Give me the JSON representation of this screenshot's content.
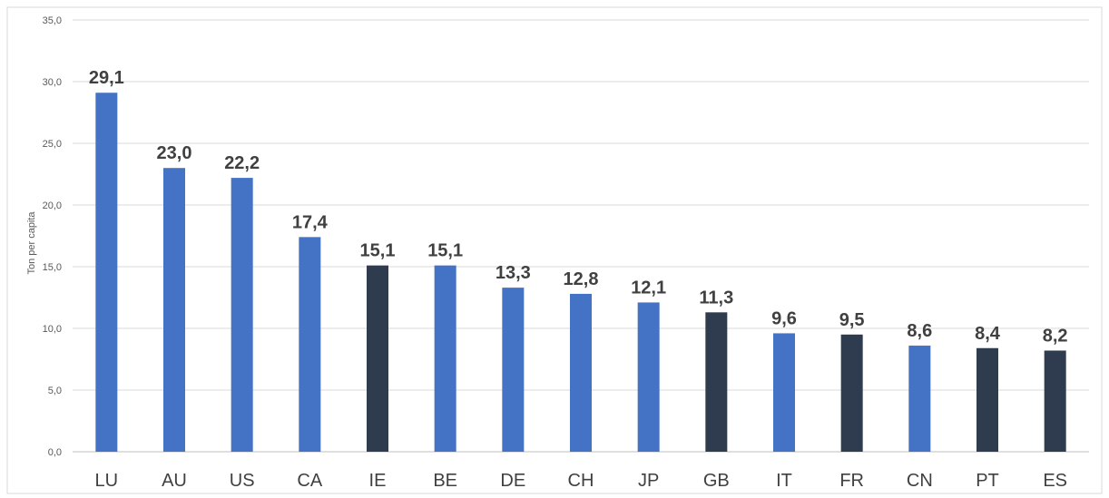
{
  "chart_data": {
    "type": "bar",
    "title": "",
    "xlabel": "",
    "ylabel": "Ton per capita",
    "ylim": [
      0,
      35
    ],
    "ytick_step": 5,
    "ytick_labels": [
      "0,0",
      "5,0",
      "10,0",
      "15,0",
      "20,0",
      "25,0",
      "30,0",
      "35,0"
    ],
    "grid": true,
    "legend": "none",
    "categories": [
      "LU",
      "AU",
      "US",
      "CA",
      "IE",
      "BE",
      "DE",
      "CH",
      "JP",
      "GB",
      "IT",
      "FR",
      "CN",
      "PT",
      "ES"
    ],
    "values": [
      29.1,
      23.0,
      22.2,
      17.4,
      15.1,
      15.1,
      13.3,
      12.8,
      12.1,
      11.3,
      9.6,
      9.5,
      8.6,
      8.4,
      8.2
    ],
    "value_labels": [
      "29,1",
      "23,0",
      "22,2",
      "17,4",
      "15,1",
      "15,1",
      "13,3",
      "12,8",
      "12,1",
      "11,3",
      "9,6",
      "9,5",
      "8,6",
      "8,4",
      "8,2"
    ],
    "bar_colors": [
      "#4472C4",
      "#4472C4",
      "#4472C4",
      "#4472C4",
      "#2F3B4F",
      "#4472C4",
      "#4472C4",
      "#4472C4",
      "#4472C4",
      "#2F3B4F",
      "#4472C4",
      "#2F3B4F",
      "#4472C4",
      "#2F3B4F",
      "#2F3B4F"
    ]
  },
  "colors": {
    "gridline": "#D9D9D9",
    "frame": "#D9D9D9"
  }
}
